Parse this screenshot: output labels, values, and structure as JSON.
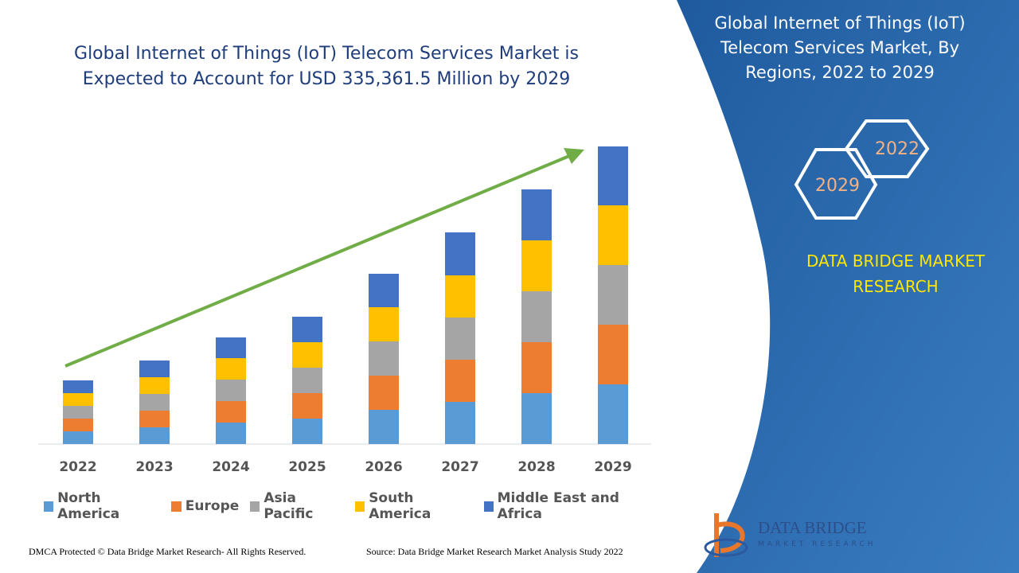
{
  "chart_data": {
    "type": "bar",
    "stacked": true,
    "title": "Global Internet of Things (IoT) Telecom Services Market is Expected to Account for USD 335,361.5 Million by 2029",
    "categories": [
      "2022",
      "2023",
      "2024",
      "2025",
      "2026",
      "2027",
      "2028",
      "2029"
    ],
    "series": [
      {
        "name": "North America",
        "color": "#5b9bd5",
        "values": [
          16,
          21,
          27,
          32,
          43,
          53,
          64,
          75
        ]
      },
      {
        "name": "Europe",
        "color": "#ed7d31",
        "values": [
          16,
          21,
          27,
          32,
          43,
          53,
          64,
          75
        ]
      },
      {
        "name": "Asia Pacific",
        "color": "#a5a5a5",
        "values": [
          16,
          21,
          27,
          32,
          43,
          53,
          64,
          75
        ]
      },
      {
        "name": "South America",
        "color": "#ffc000",
        "values": [
          16,
          21,
          27,
          32,
          43,
          53,
          64,
          75
        ]
      },
      {
        "name": "Middle East and Africa",
        "color": "#4472c4",
        "values": [
          16,
          21,
          26,
          32,
          42,
          54,
          64,
          74
        ]
      }
    ],
    "ylim": [
      0,
      380
    ]
  },
  "panel": {
    "title": "Global Internet of Things (IoT) Telecom Services Market, By Regions, 2022 to 2029",
    "hex_start": "2022",
    "hex_end": "2029",
    "brand": "DATA BRIDGE MARKET RESEARCH",
    "logo_name": "DATA BRIDGE",
    "logo_sub": "MARKET RESEARCH"
  },
  "footer": {
    "copyright": "DMCA Protected © Data Bridge Market Research- All Rights Reserved.",
    "source": "Source: Data Bridge Market Research Market Analysis Study 2022"
  }
}
